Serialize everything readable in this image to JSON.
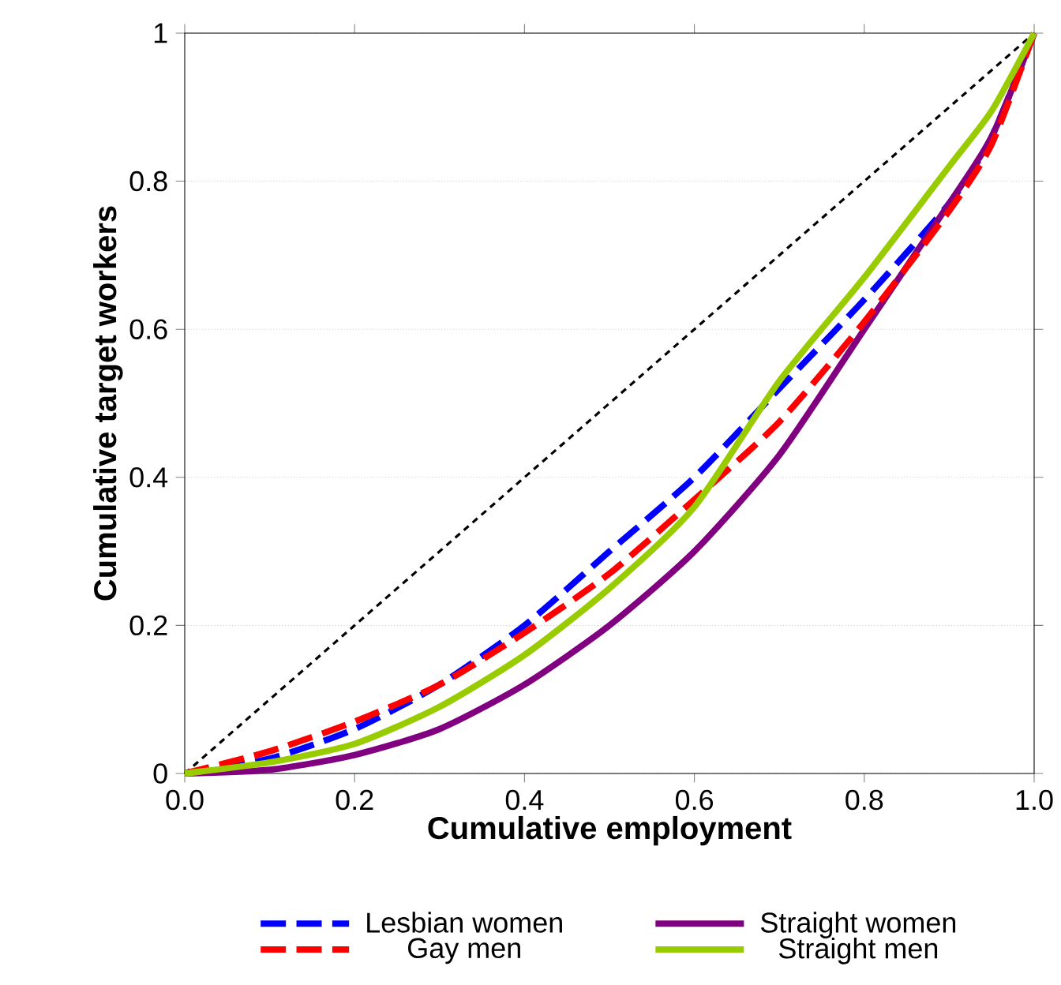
{
  "chart_data": {
    "type": "line",
    "xlabel": "Cumulative employment",
    "ylabel": "Cumulative target workers",
    "xlim": [
      0,
      1
    ],
    "ylim": [
      0,
      1
    ],
    "xticks": [
      {
        "value": 0,
        "label": "0.0"
      },
      {
        "value": 0.2,
        "label": "0.2"
      },
      {
        "value": 0.4,
        "label": "0.4"
      },
      {
        "value": 0.6,
        "label": "0.6"
      },
      {
        "value": 0.8,
        "label": "0.8"
      },
      {
        "value": 1,
        "label": "1.0"
      }
    ],
    "yticks": [
      0,
      0.2,
      0.4,
      0.6,
      0.8,
      1
    ],
    "grid": "y",
    "legend": "bottom",
    "marker": "none",
    "series": [
      {
        "color": "#000000",
        "line_style": "dashed",
        "x": [
          0,
          1
        ],
        "values": [
          0,
          1
        ]
      },
      {
        "name": "Lesbian women",
        "color": "#0000ff",
        "line_style": "dashed",
        "x": [
          0,
          0.1,
          0.2,
          0.3,
          0.4,
          0.5,
          0.6,
          0.7,
          0.8,
          0.9,
          0.95,
          1
        ],
        "values": [
          0,
          0.02,
          0.06,
          0.12,
          0.2,
          0.3,
          0.4,
          0.52,
          0.64,
          0.77,
          0.86,
          1
        ]
      },
      {
        "name": "Straight women",
        "color": "#800080",
        "line_style": "solid",
        "x": [
          0,
          0.1,
          0.2,
          0.3,
          0.4,
          0.5,
          0.6,
          0.7,
          0.8,
          0.9,
          0.95,
          1
        ],
        "values": [
          0,
          0.005,
          0.025,
          0.06,
          0.12,
          0.2,
          0.3,
          0.43,
          0.6,
          0.77,
          0.86,
          1
        ]
      },
      {
        "name": "Gay men",
        "color": "#ff0000",
        "line_style": "dashed",
        "x": [
          0,
          0.1,
          0.2,
          0.3,
          0.4,
          0.5,
          0.6,
          0.7,
          0.8,
          0.9,
          0.95,
          1
        ],
        "values": [
          0,
          0.03,
          0.07,
          0.12,
          0.19,
          0.27,
          0.37,
          0.475,
          0.61,
          0.76,
          0.85,
          1
        ]
      },
      {
        "name": "Straight men",
        "color": "#99cc00",
        "line_style": "solid",
        "x": [
          0,
          0.1,
          0.2,
          0.3,
          0.4,
          0.5,
          0.6,
          0.7,
          0.8,
          0.9,
          0.95,
          1
        ],
        "values": [
          0,
          0.015,
          0.04,
          0.09,
          0.16,
          0.25,
          0.36,
          0.53,
          0.67,
          0.82,
          0.895,
          1
        ]
      }
    ]
  }
}
